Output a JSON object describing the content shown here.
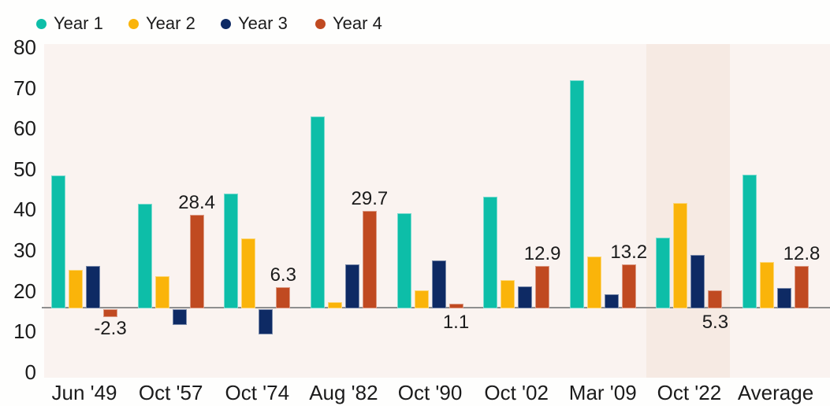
{
  "chart_data": {
    "type": "bar",
    "title": "",
    "categories": [
      "Jun '49",
      "Oct '57",
      "Oct '74",
      "Aug '82",
      "Oct '90",
      "Oct '02",
      "Mar '09",
      "Oct '22",
      "Average"
    ],
    "series": [
      {
        "name": "Year 1",
        "color": "#0DBEA8",
        "values": [
          40.5,
          31.9,
          35.0,
          58.7,
          29.0,
          34.1,
          69.8,
          21.5,
          40.8
        ]
      },
      {
        "name": "Year 2",
        "color": "#FAB40A",
        "values": [
          11.6,
          9.7,
          21.3,
          1.6,
          5.3,
          8.5,
          15.7,
          32.1,
          14.0
        ]
      },
      {
        "name": "Year 3",
        "color": "#0E2A64",
        "values": [
          12.8,
          -4.8,
          -7.7,
          13.3,
          14.5,
          6.5,
          4.1,
          16.2,
          6.0
        ]
      },
      {
        "name": "Year 4",
        "color": "#C04A21",
        "values": [
          -2.3,
          28.4,
          6.3,
          29.7,
          1.1,
          12.9,
          13.2,
          5.3,
          12.8
        ],
        "data_labels": [
          "-2.3",
          "28.4",
          "6.3",
          "29.7",
          "1.1",
          "12.9",
          "13.2",
          "5.3",
          "12.8"
        ]
      }
    ],
    "y_axis": {
      "ticks": [
        80,
        70,
        60,
        50,
        40,
        30,
        20,
        10,
        0
      ],
      "range": [
        0,
        80
      ]
    },
    "grid": false,
    "legend_position": "top",
    "highlighted_category": "Oct '22"
  },
  "colors": {
    "page_background": "#FEFEFD",
    "plot_background": "#FAF3F0",
    "highlight_band": "#F6EAE3",
    "baseline": "#8F8F8F",
    "text": "#1B1B1B",
    "year1": "#0DBEA8",
    "year2": "#FAB40A",
    "year3": "#0E2A64",
    "year4": "#C04A21"
  }
}
